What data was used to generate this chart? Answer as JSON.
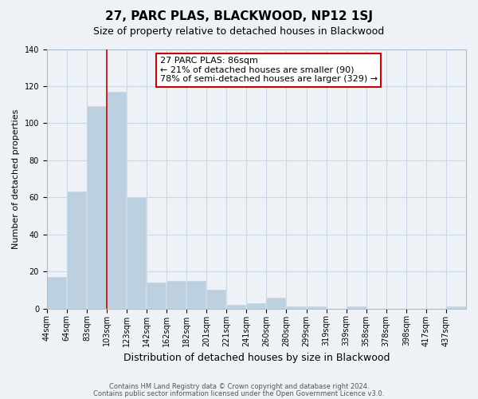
{
  "title": "27, PARC PLAS, BLACKWOOD, NP12 1SJ",
  "subtitle": "Size of property relative to detached houses in Blackwood",
  "xlabel": "Distribution of detached houses by size in Blackwood",
  "ylabel": "Number of detached properties",
  "bin_labels": [
    "44sqm",
    "64sqm",
    "83sqm",
    "103sqm",
    "123sqm",
    "142sqm",
    "162sqm",
    "182sqm",
    "201sqm",
    "221sqm",
    "241sqm",
    "260sqm",
    "280sqm",
    "299sqm",
    "319sqm",
    "339sqm",
    "358sqm",
    "378sqm",
    "398sqm",
    "417sqm",
    "437sqm"
  ],
  "bar_values": [
    17,
    63,
    109,
    117,
    60,
    14,
    15,
    15,
    10,
    2,
    3,
    6,
    1,
    1,
    0,
    1,
    0,
    0,
    0,
    0,
    1
  ],
  "bar_color": "#bdd0e0",
  "red_line_x": 3,
  "annotation_text": "27 PARC PLAS: 86sqm\n← 21% of detached houses are smaller (90)\n78% of semi-detached houses are larger (329) →",
  "annotation_box_facecolor": "#ffffff",
  "annotation_box_edgecolor": "#cc0000",
  "ylim": [
    0,
    140
  ],
  "yticks": [
    0,
    20,
    40,
    60,
    80,
    100,
    120,
    140
  ],
  "footer_line1": "Contains HM Land Registry data © Crown copyright and database right 2024.",
  "footer_line2": "Contains public sector information licensed under the Open Government Licence v3.0.",
  "red_line_color": "#cc0000",
  "grid_color": "#c8d8e8",
  "background_color": "#eef2f7",
  "spine_color": "#aabccc",
  "title_fontsize": 11,
  "subtitle_fontsize": 9,
  "ylabel_fontsize": 8,
  "xlabel_fontsize": 9,
  "tick_fontsize": 7,
  "annotation_fontsize": 8
}
